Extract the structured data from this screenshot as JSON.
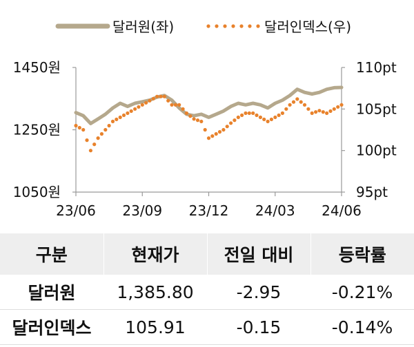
{
  "legend": {
    "krw": "달러원(좌)",
    "dxy": "달러인덱스(우)"
  },
  "colors": {
    "krw_line": "#b5a88c",
    "dxy_dots": "#e8822c",
    "axis": "#999999",
    "table_header_bg": "#eeeeee"
  },
  "chart_data": {
    "type": "line",
    "x_ticks": [
      "23/06",
      "23/09",
      "23/12",
      "24/03",
      "24/06"
    ],
    "y_left": {
      "ticks": [
        "1450원",
        "1250원",
        "1050원"
      ],
      "range": [
        1050,
        1450
      ]
    },
    "y_right": {
      "ticks": [
        "110pt",
        "105pt",
        "100pt",
        "95pt"
      ],
      "range": [
        95,
        110
      ]
    },
    "series": [
      {
        "name": "달러원(좌)",
        "axis": "left",
        "style": "solid",
        "x": [
          "23/06",
          "23/06",
          "23/07",
          "23/07",
          "23/07",
          "23/07",
          "23/08",
          "23/08",
          "23/08",
          "23/09",
          "23/09",
          "23/09",
          "23/10",
          "23/10",
          "23/10",
          "23/11",
          "23/11",
          "23/11",
          "23/12",
          "23/12",
          "23/12",
          "24/01",
          "24/01",
          "24/01",
          "24/02",
          "24/02",
          "24/03",
          "24/03",
          "24/03",
          "24/04",
          "24/04",
          "24/04",
          "24/05",
          "24/05",
          "24/05",
          "24/06",
          "24/06"
        ],
        "values": [
          1305,
          1295,
          1270,
          1285,
          1300,
          1320,
          1335,
          1325,
          1335,
          1340,
          1345,
          1355,
          1360,
          1345,
          1320,
          1300,
          1295,
          1300,
          1290,
          1300,
          1310,
          1325,
          1335,
          1330,
          1335,
          1330,
          1320,
          1335,
          1345,
          1360,
          1380,
          1370,
          1365,
          1370,
          1380,
          1385,
          1386
        ]
      },
      {
        "name": "달러인덱스(우)",
        "axis": "right",
        "style": "dotted",
        "x": [
          "23/06",
          "23/06",
          "23/07",
          "23/07",
          "23/07",
          "23/07",
          "23/08",
          "23/08",
          "23/08",
          "23/09",
          "23/09",
          "23/09",
          "23/10",
          "23/10",
          "23/10",
          "23/11",
          "23/11",
          "23/11",
          "23/12",
          "23/12",
          "23/12",
          "24/01",
          "24/01",
          "24/01",
          "24/02",
          "24/02",
          "24/03",
          "24/03",
          "24/03",
          "24/04",
          "24/04",
          "24/04",
          "24/05",
          "24/05",
          "24/05",
          "24/06",
          "24/06"
        ],
        "values": [
          103.0,
          102.5,
          100.0,
          101.5,
          102.5,
          103.5,
          104.0,
          104.5,
          105.0,
          105.5,
          106.0,
          106.5,
          106.5,
          105.5,
          105.5,
          104.5,
          103.8,
          103.5,
          101.5,
          102.0,
          102.5,
          103.3,
          104.0,
          104.5,
          104.5,
          104.0,
          103.5,
          104.0,
          104.5,
          105.5,
          106.2,
          105.5,
          104.5,
          104.8,
          104.5,
          105.0,
          105.5
        ]
      }
    ]
  },
  "table": {
    "headers": [
      "구분",
      "현재가",
      "전일 대비",
      "등락률"
    ],
    "rows": [
      [
        "달러원",
        "1,385.80",
        "-2.95",
        "-0.21%"
      ],
      [
        "달러인덱스",
        "105.91",
        "-0.15",
        "-0.14%"
      ]
    ]
  }
}
